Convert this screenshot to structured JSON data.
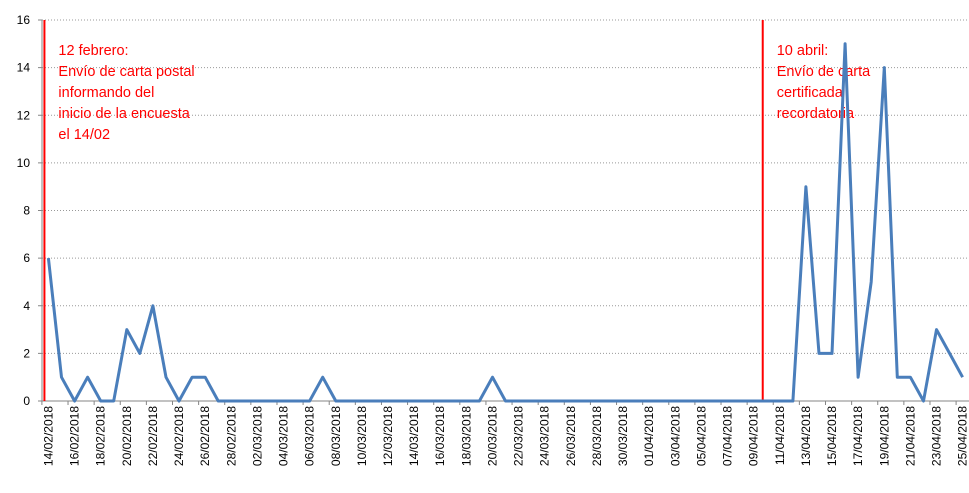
{
  "chart_data": {
    "type": "line",
    "categories": [
      "14/02/2018",
      null,
      "16/02/2018",
      null,
      "18/02/2018",
      null,
      "20/02/2018",
      null,
      "22/02/2018",
      null,
      "24/02/2018",
      null,
      "26/02/2018",
      null,
      "28/02/2018",
      null,
      "02/03/2018",
      null,
      "04/03/2018",
      null,
      "06/03/2018",
      null,
      "08/03/2018",
      null,
      "10/03/2018",
      null,
      "12/03/2018",
      null,
      "14/03/2018",
      null,
      "16/03/2018",
      null,
      "18/03/2018",
      null,
      "20/03/2018",
      null,
      "22/03/2018",
      null,
      "24/03/2018",
      null,
      "26/03/2018",
      null,
      "28/03/2018",
      null,
      "30/03/2018",
      null,
      "01/04/2018",
      null,
      "03/04/2018",
      null,
      "05/04/2018",
      null,
      "07/04/2018",
      null,
      "09/04/2018",
      null,
      "11/04/2018",
      null,
      "13/04/2018",
      null,
      "15/04/2018",
      null,
      "17/04/2018",
      null,
      "19/04/2018",
      null,
      "21/04/2018",
      null,
      "23/04/2018",
      null,
      "25/04/2018"
    ],
    "values": [
      6,
      1,
      0,
      1,
      0,
      0,
      3,
      2,
      4,
      1,
      0,
      1,
      1,
      0,
      0,
      0,
      0,
      0,
      0,
      0,
      0,
      1,
      0,
      0,
      0,
      0,
      0,
      0,
      0,
      0,
      0,
      0,
      0,
      0,
      1,
      0,
      0,
      0,
      0,
      0,
      0,
      0,
      0,
      0,
      0,
      0,
      0,
      0,
      0,
      0,
      0,
      0,
      0,
      0,
      0,
      0,
      0,
      0,
      9,
      2,
      2,
      15,
      1,
      5,
      14,
      1,
      1,
      0,
      3,
      2,
      1
    ],
    "color": "#4a7ebb",
    "ylim": [
      0,
      16
    ],
    "yticks": [
      0,
      2,
      4,
      6,
      8,
      10,
      12,
      14,
      16
    ],
    "grid": true,
    "annotations": [
      {
        "index": 0,
        "color": "#ff0000",
        "lines": [
          "12 febrero:",
          "Envío de carta postal",
          "informando del",
          "inicio de la encuesta",
          "el 14/02"
        ]
      },
      {
        "index": 55,
        "color": "#ff0000",
        "lines": [
          "10 abril:",
          "Envío de carta",
          "certificada",
          "recordatoria"
        ]
      }
    ]
  }
}
